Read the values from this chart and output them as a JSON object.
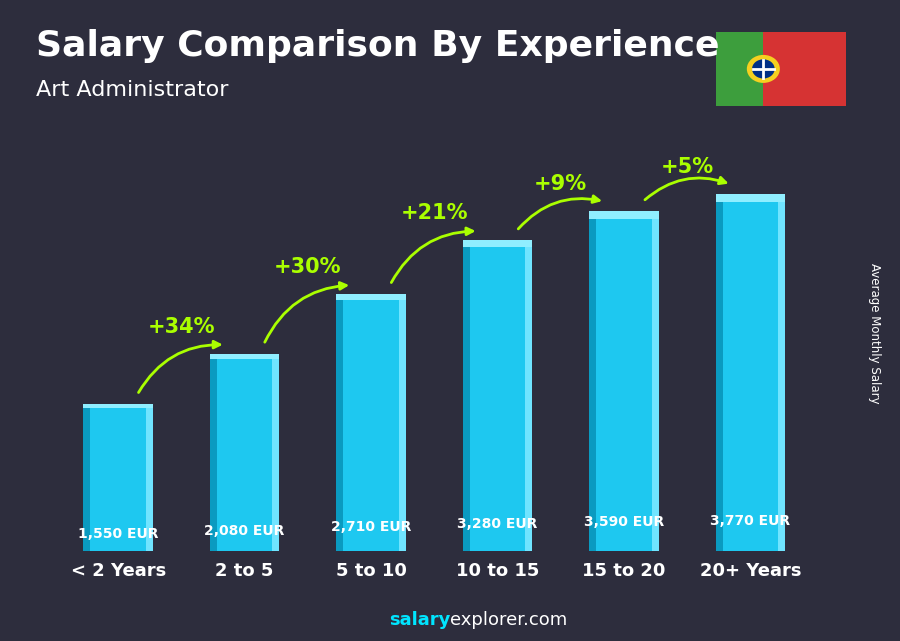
{
  "categories": [
    "< 2 Years",
    "2 to 5",
    "5 to 10",
    "10 to 15",
    "15 to 20",
    "20+ Years"
  ],
  "values": [
    1550,
    2080,
    2710,
    3280,
    3590,
    3770
  ],
  "bar_color_main": "#1EC8F0",
  "bar_color_light": "#70E4FF",
  "bar_color_dark": "#0A9AC0",
  "bar_color_top": "#90EEFF",
  "title": "Salary Comparison By Experience",
  "subtitle": "Art Administrator",
  "ylabel": "Average Monthly Salary",
  "footer_bold": "salary",
  "footer_normal": "explorer.com",
  "salary_labels": [
    "1,550 EUR",
    "2,080 EUR",
    "2,710 EUR",
    "3,280 EUR",
    "3,590 EUR",
    "3,770 EUR"
  ],
  "pct_labels": [
    "+34%",
    "+30%",
    "+21%",
    "+9%",
    "+5%"
  ],
  "text_color_white": "#ffffff",
  "text_color_cyan": "#00E5FF",
  "text_color_green": "#AAFF00",
  "title_fontsize": 26,
  "subtitle_fontsize": 16,
  "tick_fontsize": 13,
  "ylim": [
    0,
    4600
  ],
  "footer_fontsize": 13,
  "bg_color": "#2d2d3d",
  "flag_green": "#3d9e3d",
  "flag_red": "#d63333",
  "flag_yellow": "#f5d020",
  "flag_blue": "#002f86"
}
